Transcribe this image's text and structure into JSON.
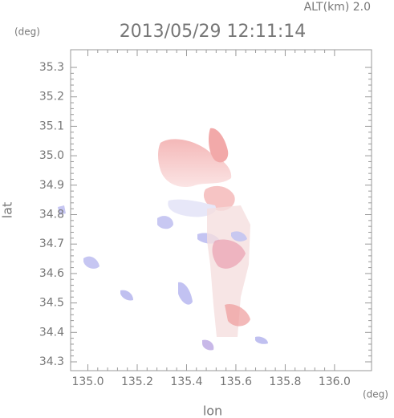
{
  "chart_data": {
    "type": "radar-map",
    "title": "2013/05/29 12:11:14",
    "subtitle": "ALT(km) 2.0",
    "y_unit": "(deg)",
    "x_unit": "(deg)",
    "ylabel": "lat",
    "xlabel": "lon",
    "xlim": [
      134.93,
      136.15
    ],
    "ylim": [
      34.27,
      35.36
    ],
    "xticks": [
      {
        "value": 135,
        "label": "135.0"
      },
      135.2,
      135.4,
      135.6,
      135.8,
      {
        "value": 136,
        "label": "136.0"
      }
    ],
    "yticks": [
      34.3,
      34.4,
      34.5,
      34.6,
      34.7,
      34.8,
      34.9,
      {
        "value": 35,
        "label": "35.0"
      },
      35.1,
      35.2,
      35.3
    ]
  }
}
